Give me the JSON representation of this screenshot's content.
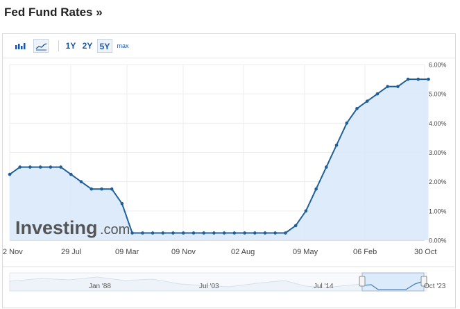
{
  "page": {
    "title": "Fed Fund Rates »"
  },
  "toolbar": {
    "chart_types": [
      {
        "name": "bar-chart-icon",
        "selected": false
      },
      {
        "name": "area-chart-icon",
        "selected": true
      }
    ],
    "ranges": [
      {
        "label": "1Y",
        "selected": false
      },
      {
        "label": "2Y",
        "selected": false
      },
      {
        "label": "5Y",
        "selected": true
      },
      {
        "label": "max",
        "selected": false
      }
    ]
  },
  "watermark": {
    "text": "Investing",
    "suffix": ".com"
  },
  "navigator": {
    "labels": [
      "Jan '88",
      "Jul '03",
      "Jul '14",
      "Oct '23"
    ]
  },
  "colors": {
    "line": "#1f5f99",
    "fill": "#d9e9fb",
    "accent": "#1a56a5"
  },
  "chart_data": {
    "type": "area",
    "title": "Fed Fund Rates",
    "xlabel": "",
    "ylabel": "",
    "ylim": [
      0,
      6
    ],
    "y_ticks": [
      "0.00%",
      "1.00%",
      "2.00%",
      "3.00%",
      "4.00%",
      "5.00%",
      "6.00%"
    ],
    "y_axis_position": "right",
    "x_tick_labels": [
      "2 Nov",
      "29 Jul",
      "09 Mar",
      "09 Nov",
      "02 Aug",
      "09 May",
      "06 Feb",
      "30 Oct"
    ],
    "grid": true,
    "series": [
      {
        "values": [
          2.25,
          2.5,
          2.5,
          2.5,
          2.5,
          2.5,
          2.25,
          2.0,
          1.75,
          1.75,
          1.75,
          1.25,
          0.25,
          0.25,
          0.25,
          0.25,
          0.25,
          0.25,
          0.25,
          0.25,
          0.25,
          0.25,
          0.25,
          0.25,
          0.25,
          0.25,
          0.25,
          0.25,
          0.5,
          1.0,
          1.75,
          2.5,
          3.25,
          4.0,
          4.5,
          4.75,
          5.0,
          5.25,
          5.25,
          5.5,
          5.5,
          5.5
        ]
      }
    ]
  }
}
